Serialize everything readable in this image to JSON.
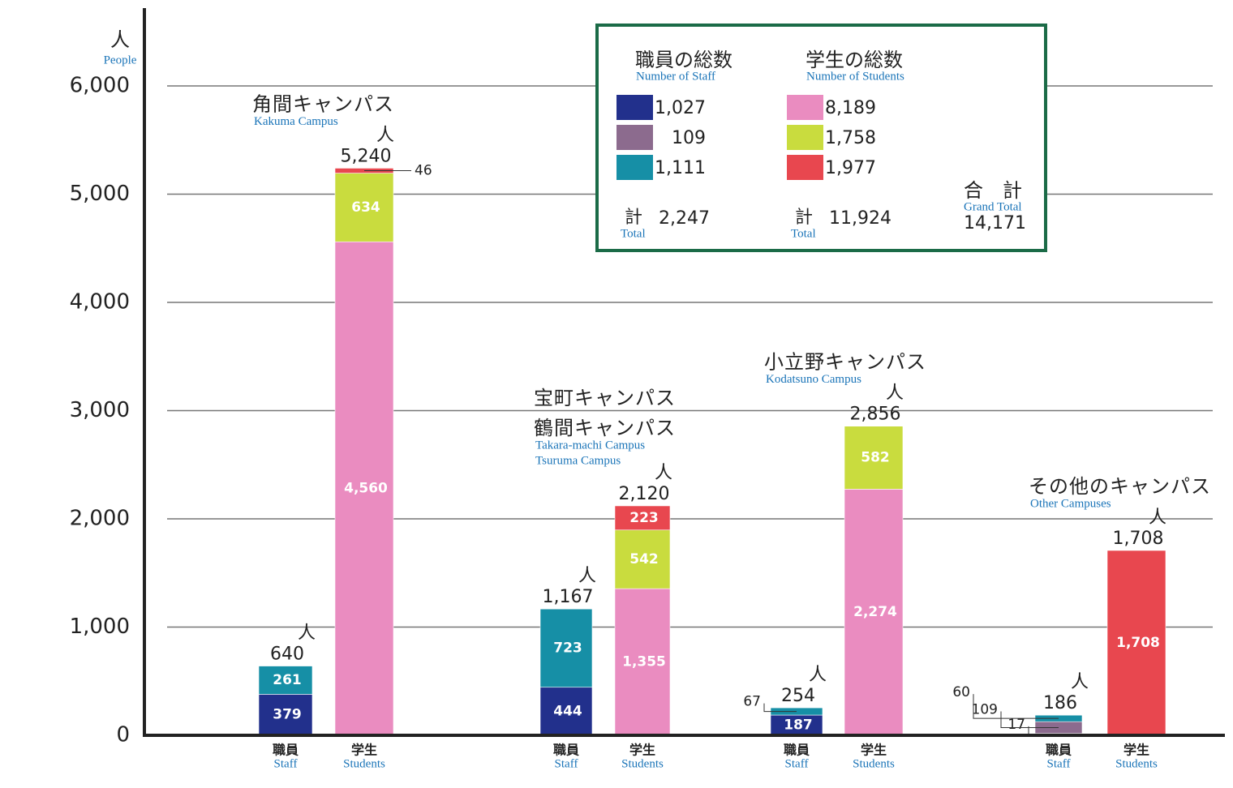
{
  "chart_data": {
    "type": "bar",
    "stacked": true,
    "y_unit": "人",
    "y_unit_en": "People",
    "ylim": [
      0,
      6000
    ],
    "yticks": [
      0,
      {
        "value": 1000,
        "label": "1,000"
      },
      {
        "value": 2000,
        "label": "2,000"
      },
      {
        "value": 3000,
        "label": "3,000"
      },
      {
        "value": 4000,
        "label": "4,000"
      },
      {
        "value": 5000,
        "label": "5,000"
      },
      {
        "value": 6000,
        "label": "6,000"
      }
    ],
    "grid": true,
    "categories": [
      "職員",
      "学生",
      "職員",
      "学生",
      "職員",
      "学生",
      "職員",
      "学生"
    ],
    "categories_en": [
      "Staff",
      "Students",
      "Staff",
      "Students",
      "Staff",
      "Students",
      "Staff",
      "Students"
    ],
    "groups": [
      {
        "names": [
          "角間キャンパス"
        ],
        "names_en": [
          "Kakuma Campus"
        ]
      },
      {
        "names": [
          "宝町キャンパス",
          "鶴間キャンパス"
        ],
        "names_en": [
          "Takara-machi Campus",
          "Tsuruma Campus"
        ]
      },
      {
        "names": [
          "小立野キャンパス"
        ],
        "names_en": [
          "Kodatsuno Campus"
        ]
      },
      {
        "names": [
          "その他のキャンパス"
        ],
        "names_en": [
          "Other Campuses"
        ]
      }
    ],
    "totals": [
      640,
      {
        "value": 5240,
        "label": "5,240"
      },
      {
        "value": 1167,
        "label": "1,167"
      },
      {
        "value": 2120,
        "label": "2,120"
      },
      254,
      {
        "value": 2856,
        "label": "2,856"
      },
      186,
      {
        "value": 1708,
        "label": "1,708"
      }
    ],
    "total_unit": "人",
    "series": [
      {
        "color": "#22308c",
        "legend_column": 0,
        "legend_value": {
          "value": 1027,
          "label": "1,027"
        },
        "values": [
          379,
          null,
          444,
          null,
          187,
          null,
          17,
          null
        ],
        "value_labels": [
          "379",
          null,
          "444",
          null,
          "187",
          null,
          "17",
          null
        ]
      },
      {
        "color": "#8c6b8e",
        "legend_column": 0,
        "legend_value": 109,
        "values": [
          null,
          null,
          null,
          null,
          null,
          null,
          109,
          null
        ],
        "value_labels": [
          null,
          null,
          null,
          null,
          null,
          null,
          "109",
          null
        ]
      },
      {
        "color": "#168fa6",
        "legend_column": 0,
        "legend_value": {
          "value": 1111,
          "label": "1,111"
        },
        "values": [
          261,
          null,
          723,
          null,
          67,
          null,
          60,
          null
        ],
        "value_labels": [
          "261",
          null,
          "723",
          null,
          "67",
          null,
          "60",
          null
        ]
      },
      {
        "color": "#ea8cc0",
        "legend_column": 1,
        "legend_value": {
          "value": 8189,
          "label": "8,189"
        },
        "values": [
          null,
          4560,
          null,
          1355,
          null,
          2274,
          null,
          null
        ],
        "value_labels": [
          null,
          "4,560",
          null,
          "1,355",
          null,
          "2,274",
          null,
          null
        ]
      },
      {
        "color": "#c9dc3e",
        "legend_column": 1,
        "legend_value": {
          "value": 1758,
          "label": "1,758"
        },
        "values": [
          null,
          634,
          null,
          542,
          null,
          582,
          null,
          null
        ],
        "value_labels": [
          null,
          "634",
          null,
          "542",
          null,
          "582",
          null,
          null
        ]
      },
      {
        "color": "#e8474f",
        "legend_column": 1,
        "legend_value": {
          "value": 1977,
          "label": "1,977"
        },
        "values": [
          null,
          46,
          null,
          223,
          null,
          null,
          null,
          1708
        ],
        "value_labels": [
          null,
          "46",
          null,
          "223",
          null,
          null,
          null,
          "1,708"
        ]
      }
    ],
    "legend": {
      "columns": [
        {
          "title": "職員の総数",
          "title_en": "Number of Staff",
          "total_word": "計",
          "total_word_en": "Total",
          "total": {
            "value": 2247,
            "label": "2,247"
          }
        },
        {
          "title": "学生の総数",
          "title_en": "Number of Students",
          "total_word": "計",
          "total_word_en": "Total",
          "total": {
            "value": 11924,
            "label": "11,924"
          }
        }
      ],
      "grand_total_word": "合　計",
      "grand_total_word_en": "Grand Total",
      "grand_total": {
        "value": 14171,
        "label": "14,171"
      }
    }
  }
}
